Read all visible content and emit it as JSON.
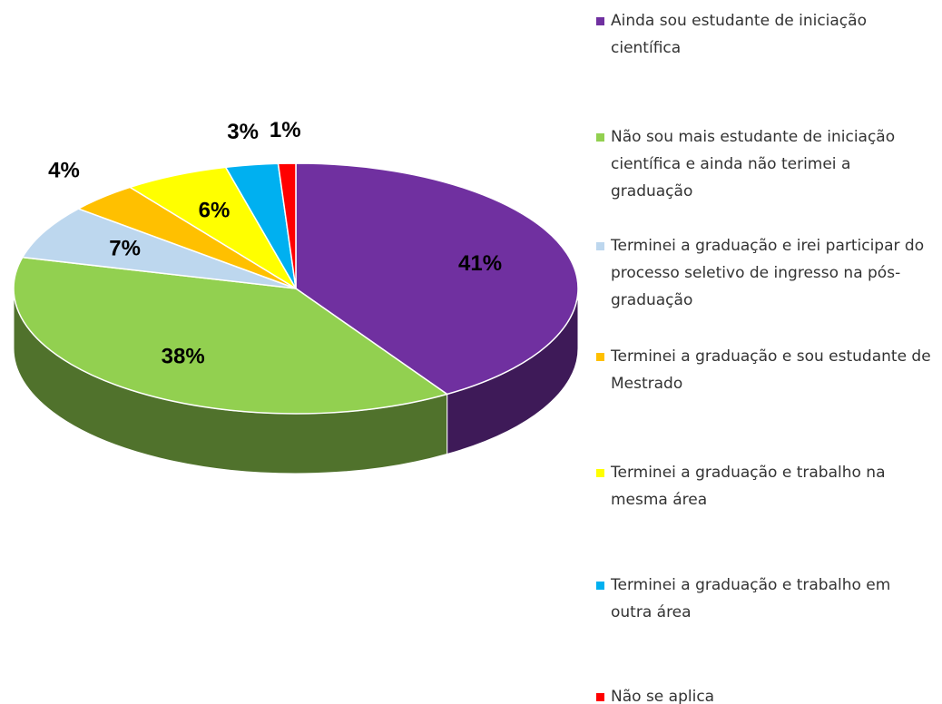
{
  "chart_data": {
    "type": "pie",
    "categories": [
      "Ainda sou estudante de iniciação científica",
      "Não sou mais estudante de iniciação científica e ainda não terimei a graduação",
      "Terminei a graduação e irei participar do processo seletivo de ingresso na pós-graduação",
      "Terminei a graduação e sou estudante de Mestrado",
      "Terminei a graduação e trabalho na mesma área",
      "Terminei a graduação e trabalho em outra área",
      "Não se aplica"
    ],
    "values": [
      41,
      38,
      7,
      4,
      6,
      3,
      1
    ],
    "value_labels": [
      "41%",
      "38%",
      "7%",
      "4%",
      "6%",
      "3%",
      "1%"
    ],
    "colors": [
      "#7030a0",
      "#92d050",
      "#bdd7ee",
      "#ffc000",
      "#ffff00",
      "#00b0f0",
      "#ff0000"
    ],
    "legend": "right"
  }
}
